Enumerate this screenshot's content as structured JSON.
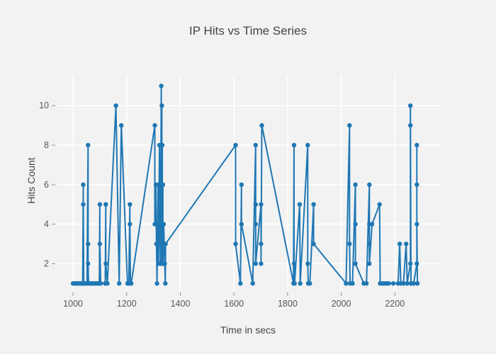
{
  "chart_data": {
    "type": "line",
    "title": "IP Hits vs Time Series",
    "xlabel": "Time in secs",
    "ylabel": "Hits Count",
    "legend": "none",
    "grid": true,
    "marker_mode": "lines+markers",
    "line_color": "#1f77b4",
    "background_color": "#f2f2f2",
    "grid_color": "#ffffff",
    "tick_color": "#999999",
    "label_color": "#555555",
    "x_ticks": [
      1000,
      1200,
      1400,
      1600,
      1800,
      2000,
      2200
    ],
    "y_ticks": [
      2,
      4,
      6,
      8,
      10
    ],
    "x_range": [
      939,
      2371
    ],
    "y_range": [
      0.58,
      11.55
    ],
    "points": [
      [
        1000,
        1
      ],
      [
        1006,
        1
      ],
      [
        1012,
        1
      ],
      [
        1018,
        1
      ],
      [
        1024,
        1
      ],
      [
        1030,
        1
      ],
      [
        1036,
        1
      ],
      [
        1038,
        6
      ],
      [
        1038,
        5
      ],
      [
        1040,
        1
      ],
      [
        1046,
        1
      ],
      [
        1052,
        1
      ],
      [
        1056,
        8
      ],
      [
        1056,
        3
      ],
      [
        1056,
        2
      ],
      [
        1058,
        1
      ],
      [
        1064,
        1
      ],
      [
        1070,
        1
      ],
      [
        1076,
        1
      ],
      [
        1082,
        1
      ],
      [
        1088,
        1
      ],
      [
        1094,
        1
      ],
      [
        1098,
        1
      ],
      [
        1100,
        5
      ],
      [
        1100,
        3
      ],
      [
        1103,
        1
      ],
      [
        1120,
        1
      ],
      [
        1122,
        5
      ],
      [
        1122,
        2
      ],
      [
        1128,
        1
      ],
      [
        1160,
        10
      ],
      [
        1172,
        1
      ],
      [
        1180,
        9
      ],
      [
        1203,
        1
      ],
      [
        1208,
        1
      ],
      [
        1212,
        5
      ],
      [
        1212,
        4
      ],
      [
        1214,
        1
      ],
      [
        1217,
        1
      ],
      [
        1305,
        9
      ],
      [
        1305,
        4
      ],
      [
        1309,
        6
      ],
      [
        1311,
        3
      ],
      [
        1313,
        1
      ],
      [
        1317,
        6
      ],
      [
        1317,
        3
      ],
      [
        1319,
        2
      ],
      [
        1322,
        8
      ],
      [
        1324,
        4
      ],
      [
        1326,
        2
      ],
      [
        1329,
        11
      ],
      [
        1329,
        4
      ],
      [
        1331,
        10
      ],
      [
        1331,
        2
      ],
      [
        1333,
        8
      ],
      [
        1333,
        3
      ],
      [
        1335,
        6
      ],
      [
        1335,
        2
      ],
      [
        1338,
        4
      ],
      [
        1340,
        3
      ],
      [
        1342,
        2
      ],
      [
        1344,
        1
      ],
      [
        1345,
        3
      ],
      [
        1606,
        8
      ],
      [
        1606,
        3
      ],
      [
        1624,
        1
      ],
      [
        1628,
        6
      ],
      [
        1628,
        4
      ],
      [
        1670,
        1
      ],
      [
        1681,
        8
      ],
      [
        1681,
        5
      ],
      [
        1681,
        4
      ],
      [
        1681,
        2
      ],
      [
        1701,
        5
      ],
      [
        1701,
        3
      ],
      [
        1701,
        2
      ],
      [
        1704,
        9
      ],
      [
        1822,
        1
      ],
      [
        1824,
        8
      ],
      [
        1824,
        2
      ],
      [
        1826,
        1
      ],
      [
        1845,
        5
      ],
      [
        1847,
        1
      ],
      [
        1875,
        8
      ],
      [
        1875,
        2
      ],
      [
        1877,
        1
      ],
      [
        1883,
        1
      ],
      [
        1897,
        5
      ],
      [
        1897,
        3
      ],
      [
        2018,
        1
      ],
      [
        2031,
        9
      ],
      [
        2031,
        3
      ],
      [
        2033,
        1
      ],
      [
        2042,
        1
      ],
      [
        2053,
        6
      ],
      [
        2053,
        4
      ],
      [
        2053,
        2
      ],
      [
        2084,
        1
      ],
      [
        2094,
        1
      ],
      [
        2105,
        6
      ],
      [
        2105,
        4
      ],
      [
        2105,
        3
      ],
      [
        2105,
        2
      ],
      [
        2115,
        4
      ],
      [
        2143,
        5
      ],
      [
        2145,
        1
      ],
      [
        2153,
        1
      ],
      [
        2161,
        1
      ],
      [
        2169,
        1
      ],
      [
        2177,
        1
      ],
      [
        2194,
        1
      ],
      [
        2212,
        1
      ],
      [
        2218,
        3
      ],
      [
        2222,
        1
      ],
      [
        2232,
        1
      ],
      [
        2242,
        3
      ],
      [
        2246,
        1
      ],
      [
        2258,
        2
      ],
      [
        2258,
        9
      ],
      [
        2258,
        10
      ],
      [
        2260,
        1
      ],
      [
        2270,
        1
      ],
      [
        2282,
        2
      ],
      [
        2282,
        8
      ],
      [
        2282,
        6
      ],
      [
        2282,
        4
      ],
      [
        2284,
        1
      ]
    ]
  }
}
